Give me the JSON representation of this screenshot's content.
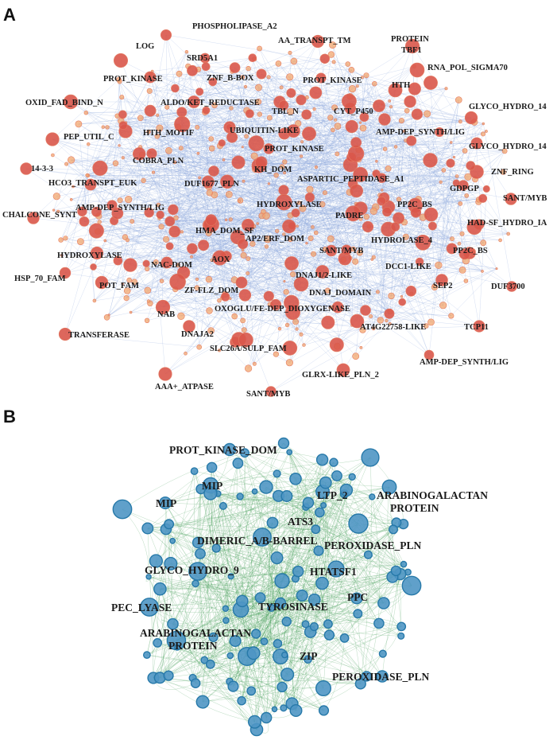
{
  "panels": [
    {
      "letter": "A",
      "colors": {
        "edge": "#8fa8dc",
        "node_large": "#d9574a",
        "node_small": "#f2a66e",
        "node_stroke": "#e47d63"
      },
      "labels": [
        "PHOSPHOLIPASE_A2",
        "LOG",
        "AA_TRANSPT_TM",
        "PROTEIN",
        "TBF1",
        "SRD5A1",
        "RNA_POL_SIGMA70",
        "PROT_KINASE",
        "ZNF_B-BOX",
        "PROT_KINASE",
        "HTH",
        "OXID_FAD_BIND_N",
        "ALDO/KET_REDUCTASE",
        "TBL_N",
        "CYT_P450",
        "GLYCO_HYDRO_14",
        "PEP_UTIL_C",
        "HTH_MOTIF",
        "UBIQUITIN-LIKE",
        "AMP-DEP_SYNTH/LIG",
        "PROT_KINASE",
        "GLYCO_HYDRO_14",
        "14-3-3",
        "COBRA_PLN",
        "KH_DOM",
        "ZNF_RING",
        "HCO3_TRANSPT_EUK",
        "DUF1677_PLN",
        "ASPARTIC_PEPTIDASE_A1",
        "GDPGP",
        "SANT/MYB",
        "CHALCONE_SYNT",
        "AMP-DEP_SYNTH/LIG",
        "HYDROXYLASE",
        "PP2C_BS",
        "PADRE",
        "HAD-SF_HYDRO_IA",
        "HMA_DOM_SF",
        "AP2/ERF_DOM",
        "HYDROLASE_4",
        "HYDROXYLASE",
        "NAC-DOM",
        "SANT/MYB",
        "PP2C_BS",
        "DCC1-LIKE",
        "HSP_70_FAM",
        "AOX",
        "DNAJ1/2-LIKE",
        "POT_FAM",
        "ZF-FLZ_DOM",
        "DNAJ_DOMAIN",
        "SEP2",
        "DUF3700",
        "OXOGLU/FE-DEP_DIOXYGENASE",
        "NAB",
        "TRANSFERASE",
        "DNAJA2",
        "AT4G22758-LIKE",
        "TCP11",
        "SLC26A/SULP_FAM",
        "AMP-DEP_SYNTH/LIG",
        "GLRX-LIKE_PLN_2",
        "AAA+_ATPASE",
        "SANT/MYB"
      ]
    },
    {
      "letter": "B",
      "colors": {
        "edge": "#3f9b52",
        "node_fill": "#4f96c4",
        "node_stroke": "#2779a9"
      },
      "labels": [
        "PROT_KINASE_DOM",
        "MIP",
        "LTP_2",
        "ARABINOGALACTAN",
        "PROTEIN",
        "MIP",
        "ATS3",
        "DIMERIC_A/B-BARREL",
        "PEROXIDASE_PLN",
        "GLYCO_HYDRO_9",
        "HTATSF1",
        "PPC",
        "PEC_LYASE",
        "TYROSINASE",
        "ARABINOGALACTAN",
        "PROTEIN",
        "ZIP",
        "PEROXIDASE_PLN"
      ]
    }
  ]
}
